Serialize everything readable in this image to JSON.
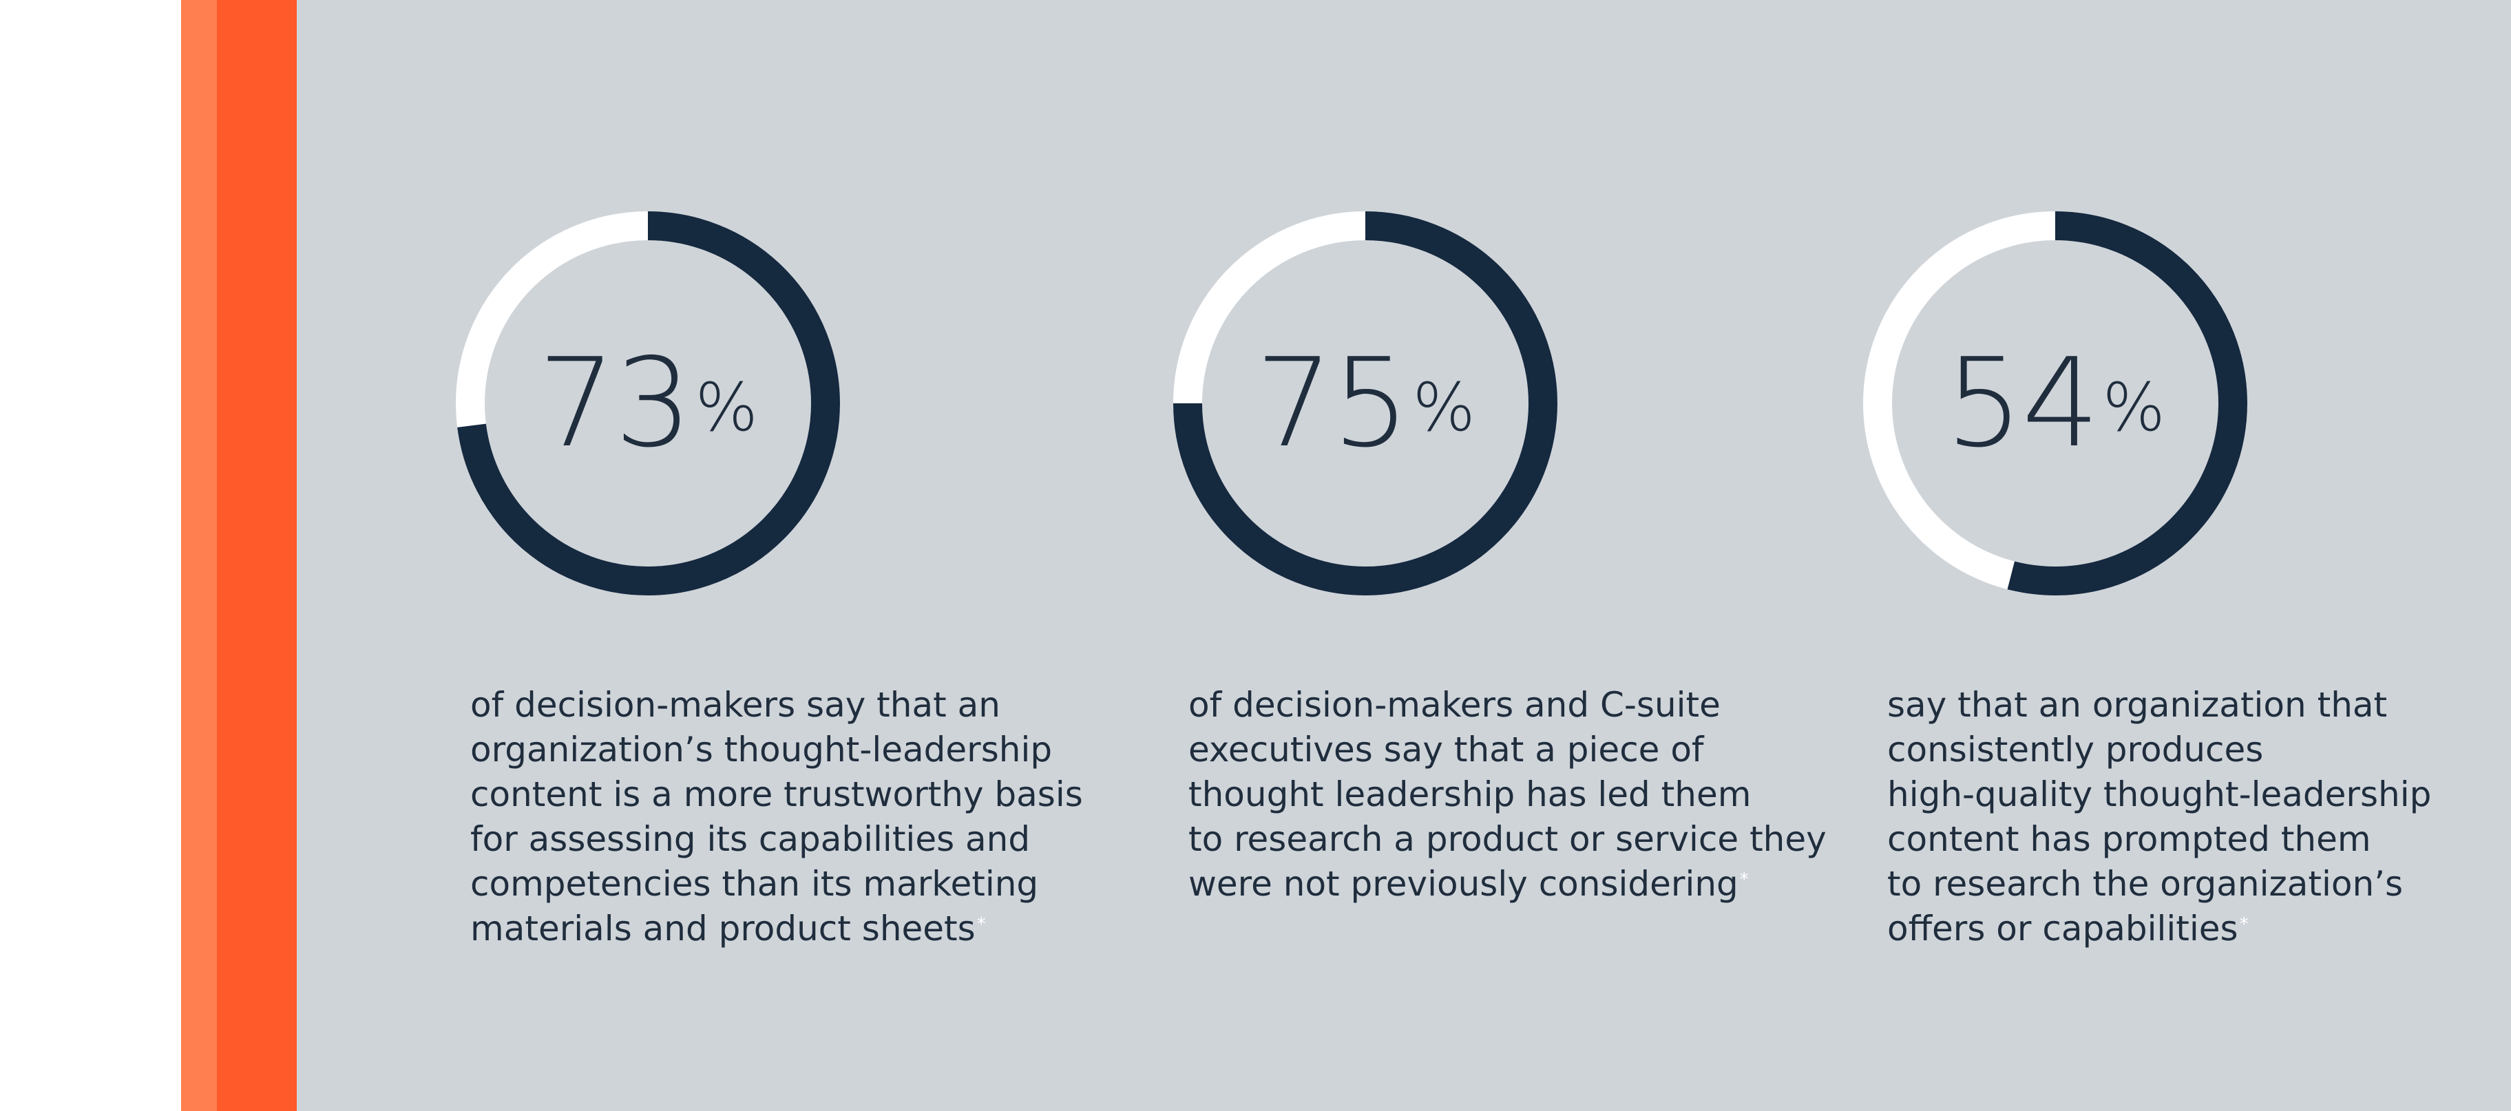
{
  "colors": {
    "background": "#CFD4D9",
    "accent_light": "#FF7F50",
    "accent_dark": "#FF5A2A",
    "ring_fill": "#15293F",
    "ring_track": "#FFFFFF",
    "text": "#1F2D3D",
    "footnote_mark": "#FFFFFF"
  },
  "chart_data": [
    {
      "type": "pie",
      "value": 73,
      "value_label": "73",
      "unit": "%",
      "caption_lines": [
        "of decision-makers say that an",
        "organization’s thought-leadership",
        "content is a more trustworthy basis",
        "for assessing its capabilities and",
        "competencies than its marketing",
        "materials and product sheets"
      ],
      "footnote_mark": "*"
    },
    {
      "type": "pie",
      "value": 75,
      "value_label": "75",
      "unit": "%",
      "caption_lines": [
        "of decision-makers and C-suite",
        "executives say that a piece of",
        "thought leadership has led them",
        "to research a product or service they",
        "were not previously considering"
      ],
      "footnote_mark": "*"
    },
    {
      "type": "pie",
      "value": 54,
      "value_label": "54",
      "unit": "%",
      "caption_lines": [
        "say that an organization that",
        "consistently produces",
        "high-quality thought-leadership",
        "content has prompted them",
        "to research the organization’s",
        "offers or capabilities"
      ],
      "footnote_mark": "*"
    }
  ]
}
